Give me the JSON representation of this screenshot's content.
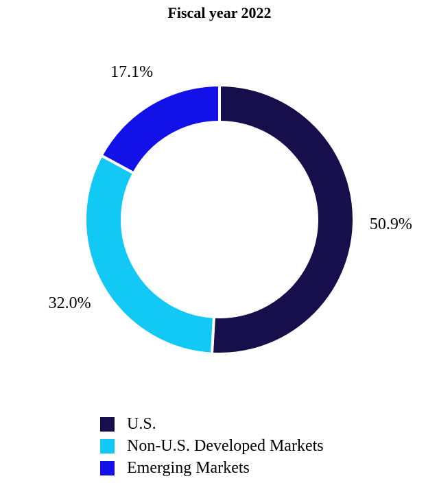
{
  "chart_data": {
    "type": "pie",
    "style": "donut",
    "title": "Fiscal year 2022",
    "categories": [
      "U.S.",
      "Non-U.S. Developed Markets",
      "Emerging Markets"
    ],
    "values": [
      50.9,
      32.0,
      17.1
    ],
    "value_labels": [
      "50.9%",
      "32.0%",
      "17.1%"
    ],
    "colors": [
      "#160f4c",
      "#12c8f5",
      "#1212e8"
    ],
    "legend_position": "bottom",
    "start_angle_deg": 0,
    "direction": "clockwise"
  }
}
